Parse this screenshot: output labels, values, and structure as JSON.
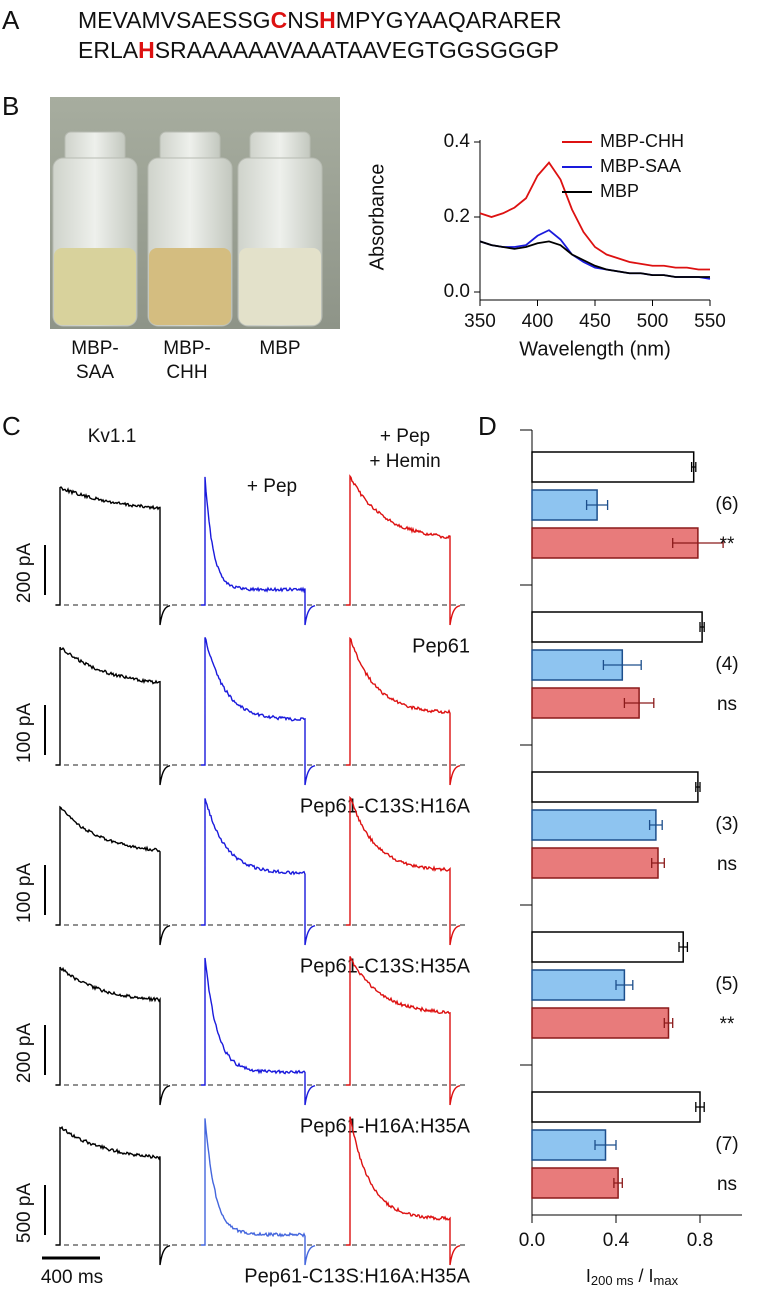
{
  "panel_labels": [
    "A",
    "B",
    "C",
    "D"
  ],
  "sequence": {
    "lines": [
      [
        {
          "text": "MEVAMVSAESSG"
        },
        {
          "text": "C",
          "color": "#dd1111"
        },
        {
          "text": "NS"
        },
        {
          "text": "H",
          "color": "#dd1111"
        },
        {
          "text": "MPYGYAAQARARER"
        }
      ],
      [
        {
          "text": "ERLA"
        },
        {
          "text": "H",
          "color": "#dd1111"
        },
        {
          "text": "SRAAAAAAVAAATAAVEGTGGSGGGP"
        }
      ]
    ]
  },
  "photo": {
    "labels": [
      [
        "MBP-",
        "SAA"
      ],
      [
        "MBP-",
        "CHH"
      ],
      [
        "MBP"
      ]
    ]
  },
  "chart_data": [
    {
      "type": "line",
      "x": [
        350,
        360,
        370,
        380,
        390,
        400,
        410,
        420,
        430,
        440,
        450,
        460,
        470,
        480,
        490,
        500,
        510,
        520,
        530,
        540,
        550
      ],
      "series": [
        {
          "name": "MBP-CHH",
          "color": "#dd1111",
          "values": [
            0.21,
            0.2,
            0.21,
            0.225,
            0.25,
            0.31,
            0.345,
            0.3,
            0.22,
            0.16,
            0.12,
            0.1,
            0.09,
            0.08,
            0.075,
            0.07,
            0.07,
            0.065,
            0.065,
            0.06,
            0.06
          ]
        },
        {
          "name": "MBP-SAA",
          "color": "#1a1adc",
          "values": [
            0.135,
            0.125,
            0.12,
            0.12,
            0.125,
            0.15,
            0.165,
            0.14,
            0.1,
            0.08,
            0.065,
            0.06,
            0.055,
            0.05,
            0.05,
            0.045,
            0.045,
            0.04,
            0.04,
            0.04,
            0.035
          ]
        },
        {
          "name": "MBP",
          "color": "#000000",
          "values": [
            0.135,
            0.125,
            0.12,
            0.115,
            0.12,
            0.13,
            0.135,
            0.125,
            0.1,
            0.085,
            0.07,
            0.06,
            0.055,
            0.05,
            0.05,
            0.045,
            0.045,
            0.04,
            0.04,
            0.04,
            0.04
          ]
        }
      ],
      "xlim": [
        350,
        550
      ],
      "xticks": [
        350,
        400,
        450,
        500,
        550
      ],
      "ylim": [
        0,
        0.4
      ],
      "yticks": [
        {
          "value": 0,
          "label": "0.0"
        },
        0.2,
        0.4
      ],
      "xlabel": "Wavelength (nm)",
      "ylabel": "Absorbance",
      "legend": "upper right"
    },
    {
      "type": "hbar",
      "series": [
        {
          "color": "#ffffff",
          "edgecolor": "#000000",
          "values": [
            0.77,
            0.81,
            0.79,
            0.72,
            0.8
          ],
          "errors": [
            0.01,
            0.01,
            0.01,
            0.02,
            0.02
          ]
        },
        {
          "color": "#8ec4f0",
          "edgecolor": "#1d4f8c",
          "values": [
            0.31,
            0.43,
            0.59,
            0.44,
            0.35
          ],
          "errors": [
            0.05,
            0.09,
            0.03,
            0.04,
            0.05
          ]
        },
        {
          "color": "#e87b7b",
          "edgecolor": "#8b1a1a",
          "values": [
            0.79,
            0.51,
            0.6,
            0.65,
            0.41
          ],
          "errors": [
            0.12,
            0.07,
            0.03,
            0.02,
            0.02
          ]
        }
      ],
      "n_labels": [
        "(6)",
        "(4)",
        "(3)",
        "(5)",
        "(7)"
      ],
      "significance": [
        "**",
        "ns",
        "ns",
        "**",
        "ns"
      ],
      "xlim": [
        0,
        1
      ],
      "xticks": [
        {
          "value": 0,
          "label": "0.0"
        },
        0.4,
        0.8
      ],
      "xlabel": [
        "I",
        "200 ms",
        " / I",
        "max"
      ]
    }
  ],
  "traces": {
    "column_labels": [
      [
        "Kv1.1"
      ],
      [
        "+ Pep"
      ],
      [
        "+ Pep",
        "+ Hemin"
      ]
    ],
    "column_colors": [
      "#000000",
      "#1a1adc",
      "#dd1111"
    ],
    "rows": [
      {
        "scale_bar": "200 pA",
        "label": "Pep61"
      },
      {
        "scale_bar": "100 pA",
        "label": "Pep61-C13S:H16A"
      },
      {
        "scale_bar": "100 pA",
        "label": "Pep61-C13S:H35A"
      },
      {
        "scale_bar": "200 pA",
        "label": "Pep61-H16A:H35A"
      },
      {
        "scale_bar": "500 pA",
        "label": "Pep61-C13S:H16A:H35A"
      }
    ],
    "time_bar": "400 ms"
  }
}
